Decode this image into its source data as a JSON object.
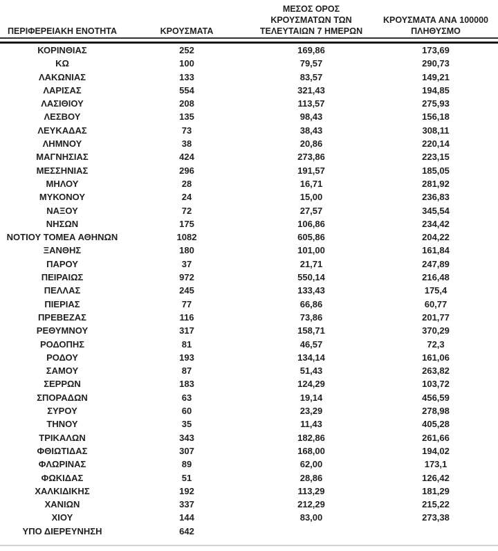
{
  "page": {
    "background_color": "#ffffff",
    "text_color": "#212121",
    "header_rule_color": "#303030",
    "thick_rule_color": "#141414",
    "bottom_rule_color": "#d2d2d2"
  },
  "table": {
    "columns": [
      {
        "id": "region",
        "header_lines": [
          "ΠΕΡΙΦΕΡΕΙΑΚΗ ΕΝΟΤΗΤΑ"
        ]
      },
      {
        "id": "cases",
        "header_lines": [
          "ΚΡΟΥΣΜΑΤΑ"
        ]
      },
      {
        "id": "avg7day",
        "header_lines": [
          "ΜΕΣΟΣ ΟΡΟΣ",
          "ΚΡΟΥΣΜΑΤΩΝ ΤΩΝ",
          "ΤΕΛΕΥΤΑΙΩΝ 7 ΗΜΕΡΩΝ"
        ]
      },
      {
        "id": "per100k",
        "header_lines": [
          "ΚΡΟΥΣΜΑΤΑ ΑΝΑ 100000",
          "ΠΛΗΘΥΣΜΟ"
        ]
      }
    ],
    "rows": [
      [
        "ΚΟΡΙΝΘΙΑΣ",
        "252",
        "169,86",
        "173,69"
      ],
      [
        "ΚΩ",
        "100",
        "79,57",
        "290,73"
      ],
      [
        "ΛΑΚΩΝΙΑΣ",
        "133",
        "83,57",
        "149,21"
      ],
      [
        "ΛΑΡΙΣΑΣ",
        "554",
        "321,43",
        "194,85"
      ],
      [
        "ΛΑΣΙΘΙΟΥ",
        "208",
        "113,57",
        "275,93"
      ],
      [
        "ΛΕΣΒΟΥ",
        "135",
        "98,43",
        "156,18"
      ],
      [
        "ΛΕΥΚΑΔΑΣ",
        "73",
        "38,43",
        "308,11"
      ],
      [
        "ΛΗΜΝΟΥ",
        "38",
        "20,86",
        "220,14"
      ],
      [
        "ΜΑΓΝΗΣΙΑΣ",
        "424",
        "273,86",
        "223,15"
      ],
      [
        "ΜΕΣΣΗΝΙΑΣ",
        "296",
        "191,57",
        "185,05"
      ],
      [
        "ΜΗΛΟΥ",
        "28",
        "16,71",
        "281,92"
      ],
      [
        "ΜΥΚΟΝΟΥ",
        "24",
        "15,00",
        "236,83"
      ],
      [
        "ΝΑΞΟΥ",
        "72",
        "27,57",
        "345,54"
      ],
      [
        "ΝΗΣΩΝ",
        "175",
        "106,86",
        "234,42"
      ],
      [
        "ΝΟΤΙΟΥ ΤΟΜΕΑ ΑΘΗΝΩΝ",
        "1082",
        "605,86",
        "204,22"
      ],
      [
        "ΞΑΝΘΗΣ",
        "180",
        "101,00",
        "161,84"
      ],
      [
        "ΠΑΡΟΥ",
        "37",
        "21,71",
        "247,89"
      ],
      [
        "ΠΕΙΡΑΙΩΣ",
        "972",
        "550,14",
        "216,48"
      ],
      [
        "ΠΕΛΛΑΣ",
        "245",
        "133,43",
        "175,4"
      ],
      [
        "ΠΙΕΡΙΑΣ",
        "77",
        "66,86",
        "60,77"
      ],
      [
        "ΠΡΕΒΕΖΑΣ",
        "116",
        "73,86",
        "201,77"
      ],
      [
        "ΡΕΘΥΜΝΟΥ",
        "317",
        "158,71",
        "370,29"
      ],
      [
        "ΡΟΔΟΠΗΣ",
        "81",
        "46,57",
        "72,3"
      ],
      [
        "ΡΟΔΟΥ",
        "193",
        "134,14",
        "161,06"
      ],
      [
        "ΣΑΜΟΥ",
        "87",
        "51,43",
        "263,82"
      ],
      [
        "ΣΕΡΡΩΝ",
        "183",
        "124,29",
        "103,72"
      ],
      [
        "ΣΠΟΡΑΔΩΝ",
        "63",
        "19,14",
        "456,59"
      ],
      [
        "ΣΥΡΟΥ",
        "60",
        "23,29",
        "278,98"
      ],
      [
        "ΤΗΝΟΥ",
        "35",
        "11,43",
        "405,28"
      ],
      [
        "ΤΡΙΚΑΛΩΝ",
        "343",
        "182,86",
        "261,66"
      ],
      [
        "ΦΘΙΩΤΙΔΑΣ",
        "307",
        "168,00",
        "194,02"
      ],
      [
        "ΦΛΩΡΙΝΑΣ",
        "89",
        "62,00",
        "173,1"
      ],
      [
        "ΦΩΚΙΔΑΣ",
        "51",
        "28,86",
        "126,42"
      ],
      [
        "ΧΑΛΚΙΔΙΚΗΣ",
        "192",
        "113,29",
        "181,29"
      ],
      [
        "ΧΑΝΙΩΝ",
        "337",
        "212,29",
        "215,22"
      ],
      [
        "ΧΙΟΥ",
        "144",
        "83,00",
        "273,38"
      ],
      [
        "ΥΠΟ ΔΙΕΡΕΥΝΗΣΗ",
        "642",
        "",
        ""
      ]
    ]
  }
}
